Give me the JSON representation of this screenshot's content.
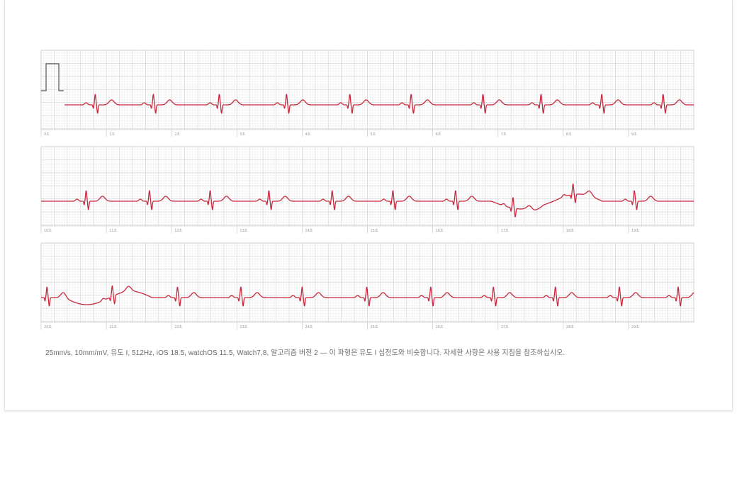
{
  "footer": {
    "text": "25mm/s, 10mm/mV, 유도 I, 512Hz, iOS 18.5, watchOS 11.5, Watch7,8, 알고리즘 버전 2 — 이 파형은 유도 I 심전도와 비슷합니다. 자세한 사항은 사용 지침을 참조하십시오."
  },
  "colors": {
    "trace": "#c8283c",
    "grid_major": "#d4d4d4",
    "grid_minor": "#ececec",
    "calibration": "#555555",
    "tick_label": "#9a9a9a"
  },
  "chart_data": {
    "type": "line",
    "grid": true,
    "x_unit": "s",
    "calibration_pulse": "10mm/mV",
    "strips": [
      {
        "ticks": [
          "0초",
          "1초",
          "2초",
          "3초",
          "4초",
          "5초",
          "6초",
          "7초",
          "8초",
          "9초"
        ],
        "beats": [
          0.83,
          1.72,
          2.73,
          3.76,
          4.73,
          5.67,
          6.77,
          7.66,
          8.59,
          9.53
        ]
      },
      {
        "ticks": [
          "10초",
          "11초",
          "12초",
          "13초",
          "14초",
          "15초",
          "16초",
          "17초",
          "18초",
          "19초"
        ],
        "beats": [
          10.69,
          11.66,
          12.59,
          13.49,
          14.46,
          15.39,
          16.35,
          17.23,
          18.15,
          19.09
        ]
      },
      {
        "ticks": [
          "20초",
          "21초",
          "22초",
          "23초",
          "24초",
          "25초",
          "26초",
          "27초",
          "28초",
          "29초"
        ],
        "beats": [
          20.09,
          21.09,
          22.09,
          23.06,
          24.0,
          24.99,
          25.97,
          26.93,
          27.88,
          28.86,
          29.76
        ]
      }
    ]
  }
}
